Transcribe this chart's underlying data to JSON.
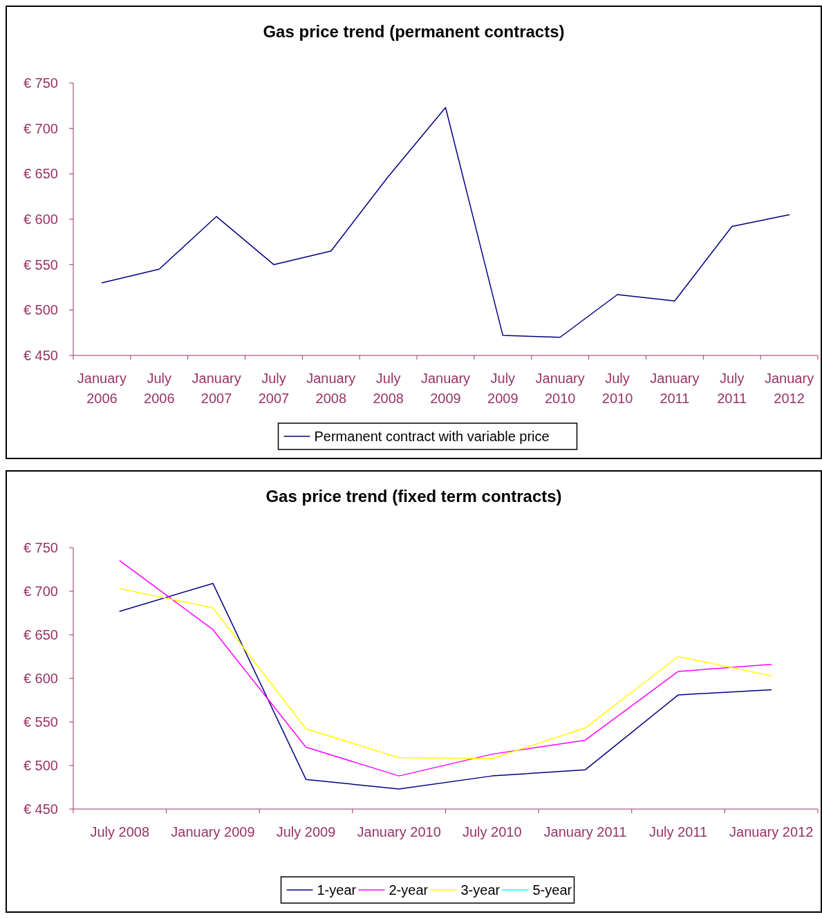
{
  "chart_data": [
    {
      "type": "line",
      "title": "Gas price trend (permanent contracts)",
      "categories": [
        "January 2006",
        "July 2006",
        "January 2007",
        "July 2007",
        "January 2008",
        "July 2008",
        "January 2009",
        "July 2009",
        "January 2010",
        "July 2010",
        "January 2011",
        "July 2011",
        "January 2012"
      ],
      "series": [
        {
          "name": "Permanent contract with variable price",
          "color": "#000080",
          "values": [
            530,
            545,
            603,
            550,
            565,
            647,
            723,
            472,
            470,
            517,
            510,
            592,
            605
          ]
        }
      ],
      "ylim": [
        450,
        750
      ],
      "yticks": [
        {
          "value": 450,
          "label": "€ 450"
        },
        {
          "value": 500,
          "label": "€ 500"
        },
        {
          "value": 550,
          "label": "€ 550"
        },
        {
          "value": 600,
          "label": "€ 600"
        },
        {
          "value": 650,
          "label": "€ 650"
        },
        {
          "value": 700,
          "label": "€ 700"
        },
        {
          "value": 750,
          "label": "€ 750"
        }
      ],
      "grid": false,
      "legend": "bottom"
    },
    {
      "type": "line",
      "title": "Gas price trend (fixed term contracts)",
      "categories": [
        "July 2008",
        "January 2009",
        "July 2009",
        "January 2010",
        "July 2010",
        "January 2011",
        "July 2011",
        "January 2012"
      ],
      "series": [
        {
          "name": "1-year",
          "color": "#000080",
          "values": [
            677,
            709,
            484,
            473,
            488,
            495,
            581,
            587
          ]
        },
        {
          "name": "2-year",
          "color": "#ff00ff",
          "values": [
            735,
            656,
            521,
            488,
            513,
            529,
            608,
            616
          ]
        },
        {
          "name": "3-year",
          "color": "#ffff00",
          "values": [
            703,
            681,
            542,
            509,
            508,
            543,
            625,
            603
          ]
        },
        {
          "name": "5-year",
          "color": "#00ffff",
          "values": [
            null,
            null,
            null,
            null,
            null,
            null,
            null,
            null
          ]
        }
      ],
      "ylim": [
        450,
        750
      ],
      "yticks": [
        {
          "value": 450,
          "label": "€ 450"
        },
        {
          "value": 500,
          "label": "€ 500"
        },
        {
          "value": 550,
          "label": "€ 550"
        },
        {
          "value": 600,
          "label": "€ 600"
        },
        {
          "value": 650,
          "label": "€ 650"
        },
        {
          "value": 700,
          "label": "€ 700"
        },
        {
          "value": 750,
          "label": "€ 750"
        }
      ],
      "grid": false,
      "legend": "bottom"
    }
  ]
}
